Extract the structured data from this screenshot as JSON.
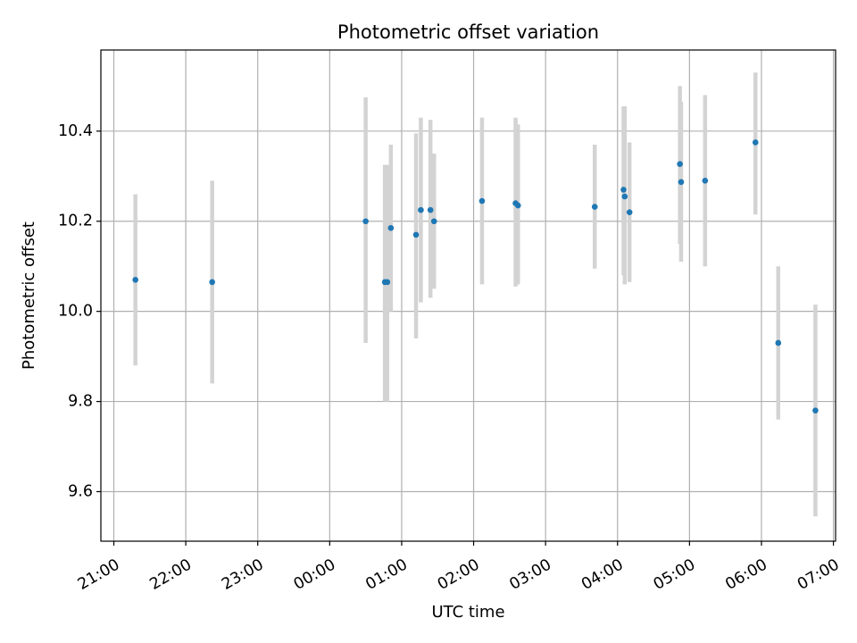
{
  "chart_data": {
    "type": "scatter",
    "title": "Photometric offset variation",
    "xlabel": "UTC time",
    "ylabel": "Photometric offset",
    "x_axis_kind": "time (hours from 21:00 UTC)",
    "xlim": [
      -0.18,
      10.03
    ],
    "ylim": [
      9.49,
      10.58
    ],
    "x_ticks": [
      {
        "value": 0,
        "label": "21:00"
      },
      {
        "value": 1,
        "label": "22:00"
      },
      {
        "value": 2,
        "label": "23:00"
      },
      {
        "value": 3,
        "label": "00:00"
      },
      {
        "value": 4,
        "label": "01:00"
      },
      {
        "value": 5,
        "label": "02:00"
      },
      {
        "value": 6,
        "label": "03:00"
      },
      {
        "value": 7,
        "label": "04:00"
      },
      {
        "value": 8,
        "label": "05:00"
      },
      {
        "value": 9,
        "label": "06:00"
      },
      {
        "value": 10,
        "label": "07:00"
      }
    ],
    "y_ticks": [
      {
        "value": 9.6,
        "label": "9.6"
      },
      {
        "value": 9.8,
        "label": "9.8"
      },
      {
        "value": 10.0,
        "label": "10.0"
      },
      {
        "value": 10.2,
        "label": "10.2"
      },
      {
        "value": 10.4,
        "label": "10.4"
      }
    ],
    "grid": true,
    "point_color": "#1f77b4",
    "errorbar_color": "#d3d3d3",
    "points": [
      {
        "time": "21:18",
        "y": 10.07,
        "ylow": 9.88,
        "yhigh": 10.26
      },
      {
        "time": "22:22",
        "y": 10.065,
        "ylow": 9.84,
        "yhigh": 10.29
      },
      {
        "time": "00:30",
        "y": 10.2,
        "ylow": 9.93,
        "yhigh": 10.475
      },
      {
        "time": "00:46",
        "y": 10.065,
        "ylow": 9.8,
        "yhigh": 10.325
      },
      {
        "time": "00:48",
        "y": 10.065,
        "ylow": 9.8,
        "yhigh": 10.325
      },
      {
        "time": "00:51",
        "y": 10.185,
        "ylow": 10.0,
        "yhigh": 10.37
      },
      {
        "time": "01:12",
        "y": 10.17,
        "ylow": 9.94,
        "yhigh": 10.395
      },
      {
        "time": "01:16",
        "y": 10.225,
        "ylow": 10.02,
        "yhigh": 10.43
      },
      {
        "time": "01:24",
        "y": 10.225,
        "ylow": 10.03,
        "yhigh": 10.425
      },
      {
        "time": "01:27",
        "y": 10.2,
        "ylow": 10.05,
        "yhigh": 10.35
      },
      {
        "time": "02:07",
        "y": 10.245,
        "ylow": 10.06,
        "yhigh": 10.43
      },
      {
        "time": "02:35",
        "y": 10.24,
        "ylow": 10.055,
        "yhigh": 10.43
      },
      {
        "time": "02:37",
        "y": 10.235,
        "ylow": 10.06,
        "yhigh": 10.415
      },
      {
        "time": "03:41",
        "y": 10.232,
        "ylow": 10.095,
        "yhigh": 10.37
      },
      {
        "time": "04:05",
        "y": 10.27,
        "ylow": 10.08,
        "yhigh": 10.455
      },
      {
        "time": "04:06",
        "y": 10.255,
        "ylow": 10.06,
        "yhigh": 10.455
      },
      {
        "time": "04:10",
        "y": 10.22,
        "ylow": 10.065,
        "yhigh": 10.375
      },
      {
        "time": "04:52",
        "y": 10.327,
        "ylow": 10.15,
        "yhigh": 10.5
      },
      {
        "time": "04:53",
        "y": 10.287,
        "ylow": 10.11,
        "yhigh": 10.465
      },
      {
        "time": "05:13",
        "y": 10.29,
        "ylow": 10.1,
        "yhigh": 10.48
      },
      {
        "time": "05:55",
        "y": 10.375,
        "ylow": 10.215,
        "yhigh": 10.53
      },
      {
        "time": "06:14",
        "y": 9.93,
        "ylow": 9.76,
        "yhigh": 10.1
      },
      {
        "time": "06:45",
        "y": 9.78,
        "ylow": 9.545,
        "yhigh": 10.015
      }
    ]
  }
}
